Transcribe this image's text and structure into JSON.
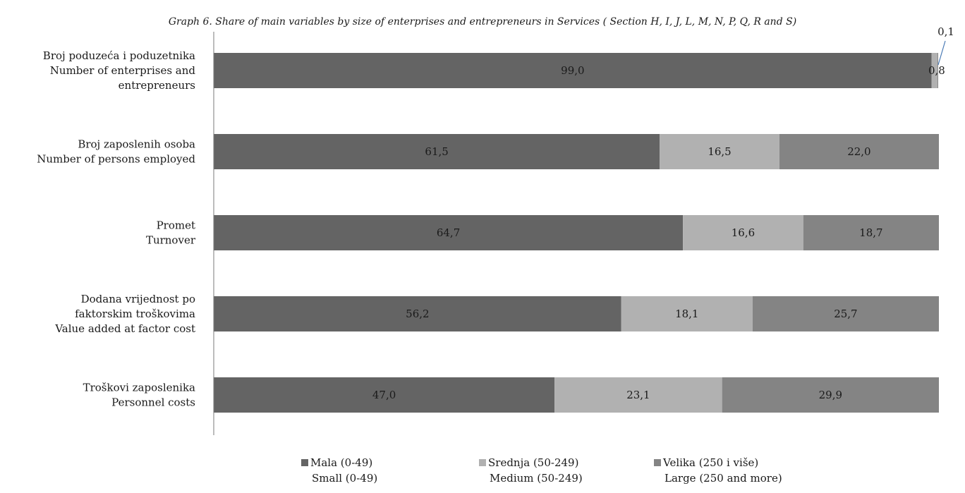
{
  "chart_data": {
    "type": "bar",
    "orientation": "horizontal",
    "stacked": "100%",
    "title": "Graph 6. Share of main variables by size of enterprises and entrepreneurs  in Services ( Section H, I, J, L, M, N, P, Q, R and S)",
    "categories": [
      [
        "Broj poduzeća i poduzetnika",
        "Number of enterprises and",
        "entrepreneurs"
      ],
      [
        "Broj zaposlenih osoba",
        "Number of persons employed"
      ],
      [
        "Promet",
        "Turnover"
      ],
      [
        "Dodana vrijednost po",
        "faktorskim troškovima",
        "Value added at factor cost"
      ],
      [
        "Troškovi zaposlenika",
        "Personnel costs"
      ]
    ],
    "series": [
      {
        "name": [
          "Mala (0-49)",
          "Small (0-49)"
        ],
        "color": "#646464",
        "values": [
          99.0,
          61.5,
          64.7,
          56.2,
          47.0
        ],
        "labels": [
          "99,0",
          "61,5",
          "64,7",
          "56,2",
          "47,0"
        ]
      },
      {
        "name": [
          "Srednja (50-249)",
          "Medium (50-249)"
        ],
        "color": "#b1b1b1",
        "values": [
          0.8,
          16.5,
          16.6,
          18.1,
          23.1
        ],
        "labels": [
          "0,8",
          "16,5",
          "16,6",
          "18,1",
          "23,1"
        ]
      },
      {
        "name": [
          "Velika (250 i više)",
          "Large (250 and more)"
        ],
        "color": "#848484",
        "values": [
          0.1,
          22.0,
          18.7,
          25.7,
          29.9
        ],
        "labels": [
          "0,1",
          "22,0",
          "18,7",
          "25,7",
          "29,9"
        ]
      }
    ],
    "xlim": [
      0,
      100
    ],
    "grid": false,
    "legend_position": "bottom"
  }
}
